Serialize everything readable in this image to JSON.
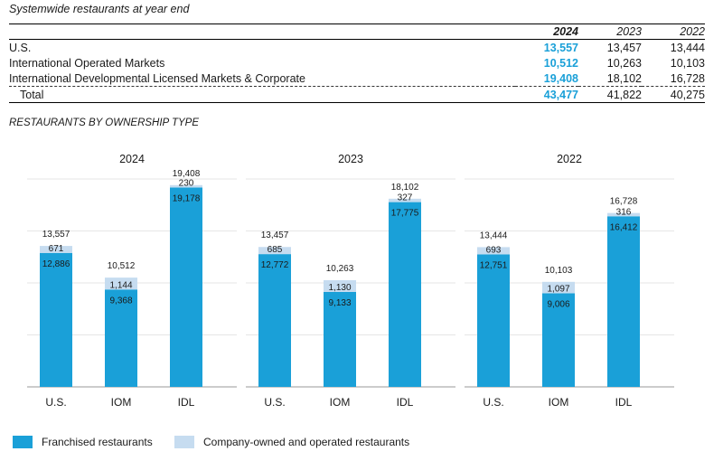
{
  "table": {
    "title": "Systemwide restaurants at year end",
    "years": [
      "2024",
      "2023",
      "2022"
    ],
    "rows": [
      {
        "label": "U.S.",
        "values": [
          "13,557",
          "13,457",
          "13,444"
        ]
      },
      {
        "label": "International Operated Markets",
        "values": [
          "10,512",
          "10,263",
          "10,103"
        ]
      },
      {
        "label": "International Developmental Licensed Markets & Corporate",
        "values": [
          "19,408",
          "18,102",
          "16,728"
        ]
      },
      {
        "label": "Total",
        "values": [
          "43,477",
          "41,822",
          "40,275"
        ]
      }
    ]
  },
  "colors": {
    "franchised": "#1aa0d8",
    "company": "#c6dcf0",
    "highlight": "#1aa0d8"
  },
  "chart_data": {
    "type": "bar",
    "title": "RESTAURANTS BY OWNERSHIP TYPE",
    "stacked": true,
    "categories": [
      "U.S.",
      "IOM",
      "IDL"
    ],
    "ylim": [
      0,
      20000
    ],
    "grid": true,
    "panels": [
      {
        "title": "2024",
        "series": [
          {
            "name": "Franchised restaurants",
            "values": [
              12886,
              9368,
              19178
            ],
            "labels": [
              "12,886",
              "9,368",
              "19,178"
            ]
          },
          {
            "name": "Company-owned and operated restaurants",
            "values": [
              671,
              1144,
              230
            ],
            "labels": [
              "671",
              "1,144",
              "230"
            ]
          }
        ],
        "totals": [
          "13,557",
          "10,512",
          "19,408"
        ]
      },
      {
        "title": "2023",
        "series": [
          {
            "name": "Franchised restaurants",
            "values": [
              12772,
              9133,
              17775
            ],
            "labels": [
              "12,772",
              "9,133",
              "17,775"
            ]
          },
          {
            "name": "Company-owned and operated restaurants",
            "values": [
              685,
              1130,
              327
            ],
            "labels": [
              "685",
              "1,130",
              "327"
            ]
          }
        ],
        "totals": [
          "13,457",
          "10,263",
          "18,102"
        ]
      },
      {
        "title": "2022",
        "series": [
          {
            "name": "Franchised restaurants",
            "values": [
              12751,
              9006,
              16412
            ],
            "labels": [
              "12,751",
              "9,006",
              "16,412"
            ]
          },
          {
            "name": "Company-owned and operated restaurants",
            "values": [
              693,
              1097,
              316
            ],
            "labels": [
              "693",
              "1,097",
              "316"
            ]
          }
        ],
        "totals": [
          "13,444",
          "10,103",
          "16,728"
        ]
      }
    ],
    "legend": [
      "Franchised restaurants",
      "Company-owned and operated restaurants"
    ]
  }
}
